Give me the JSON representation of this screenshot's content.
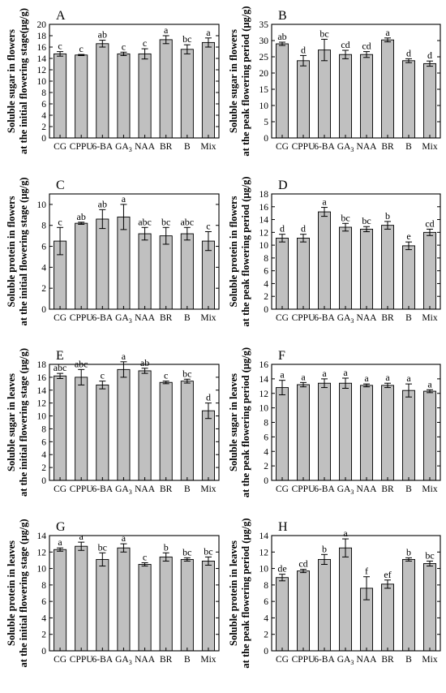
{
  "chart_data": [
    {
      "panel": "A",
      "type": "bar",
      "ylabel_lines": [
        "Soluble sugar in flowers",
        "at the initial flowering stage(μg/g)"
      ],
      "categories": [
        "CG",
        "CPPU",
        "6-BA",
        "GA3",
        "NAA",
        "BR",
        "B",
        "Mix"
      ],
      "values": [
        14.8,
        14.6,
        16.6,
        14.8,
        14.8,
        17.3,
        15.6,
        16.8
      ],
      "errors": [
        0.4,
        0.1,
        0.6,
        0.3,
        0.9,
        0.7,
        0.8,
        0.8
      ],
      "letters": [
        "c",
        "c",
        "ab",
        "c",
        "c",
        "a",
        "bc",
        "a"
      ],
      "ylim": [
        0,
        20
      ],
      "yticks": [
        0,
        2,
        4,
        6,
        8,
        10,
        12,
        14,
        16,
        18,
        20
      ]
    },
    {
      "panel": "B",
      "type": "bar",
      "ylabel_lines": [
        "Soluble sugar in flowers",
        "at the peak flowering period (μg/g)"
      ],
      "categories": [
        "CG",
        "CPPU",
        "6-BA",
        "GA3",
        "NAA",
        "BR",
        "B",
        "Mix"
      ],
      "values": [
        29.0,
        23.8,
        27.1,
        25.7,
        25.7,
        30.2,
        23.8,
        22.9
      ],
      "errors": [
        0.5,
        1.6,
        3.3,
        1.3,
        0.9,
        0.6,
        0.6,
        0.8
      ],
      "letters": [
        "ab",
        "d",
        "bc",
        "cd",
        "cd",
        "a",
        "d",
        "d"
      ],
      "ylim": [
        0,
        35
      ],
      "yticks": [
        0,
        5,
        10,
        15,
        20,
        25,
        30,
        35
      ]
    },
    {
      "panel": "C",
      "type": "bar",
      "ylabel_lines": [
        "Soluble protein in flowers",
        "at the initial flowering stage (μg/g)"
      ],
      "categories": [
        "CG",
        "CPPU",
        "6-BA",
        "GA3",
        "NAA",
        "BR",
        "B",
        "Mix"
      ],
      "values": [
        6.5,
        8.2,
        8.6,
        8.8,
        7.2,
        7.0,
        7.2,
        6.5
      ],
      "errors": [
        1.3,
        0.1,
        0.9,
        1.2,
        0.6,
        0.8,
        0.6,
        0.9
      ],
      "letters": [
        "c",
        "ab",
        "ab",
        "a",
        "abc",
        "bc",
        "abc",
        "c"
      ],
      "ylim": [
        0,
        11
      ],
      "yticks": [
        0,
        2,
        4,
        6,
        8,
        10
      ]
    },
    {
      "panel": "D",
      "type": "bar",
      "ylabel_lines": [
        "Soluble protein in flowers",
        "at the peak flowering period (μg/g)"
      ],
      "categories": [
        "CG",
        "CPPU",
        "6-BA",
        "GA3",
        "NAA",
        "BR",
        "B",
        "Mix"
      ],
      "values": [
        11.1,
        11.1,
        15.2,
        12.8,
        12.5,
        13.1,
        9.9,
        12.0
      ],
      "errors": [
        0.6,
        0.6,
        0.7,
        0.6,
        0.4,
        0.6,
        0.6,
        0.5
      ],
      "letters": [
        "d",
        "d",
        "a",
        "bc",
        "bc",
        "b",
        "e",
        "cd"
      ],
      "ylim": [
        0,
        18
      ],
      "yticks": [
        0,
        2,
        4,
        6,
        8,
        10,
        12,
        14,
        16,
        18
      ]
    },
    {
      "panel": "E",
      "type": "bar",
      "ylabel_lines": [
        "Soluble sugar in leaves",
        "at the initial flowering stage (μg/g)"
      ],
      "categories": [
        "CG",
        "CPPU",
        "6-BA",
        "GA3",
        "NAA",
        "BR",
        "B",
        "Mix"
      ],
      "values": [
        16.2,
        16.0,
        14.8,
        17.2,
        17.0,
        15.2,
        15.4,
        10.8
      ],
      "errors": [
        0.4,
        1.2,
        0.6,
        1.2,
        0.4,
        0.2,
        0.3,
        1.2
      ],
      "letters": [
        "abc",
        "abc",
        "c",
        "a",
        "ab",
        "c",
        "bc",
        "d"
      ],
      "ylim": [
        0,
        18
      ],
      "yticks": [
        0,
        2,
        4,
        6,
        8,
        10,
        12,
        14,
        16,
        18
      ]
    },
    {
      "panel": "F",
      "type": "bar",
      "ylabel_lines": [
        "Soluble sugar in leaves",
        "at the peak flowering period (μg/g)"
      ],
      "categories": [
        "CG",
        "CPPU",
        "6-BA",
        "GA3",
        "NAA",
        "BR",
        "B",
        "Mix"
      ],
      "values": [
        12.8,
        13.2,
        13.4,
        13.4,
        13.1,
        13.1,
        12.4,
        12.3
      ],
      "errors": [
        1.0,
        0.3,
        0.6,
        0.7,
        0.2,
        0.3,
        0.9,
        0.2
      ],
      "letters": [
        "a",
        "a",
        "a",
        "a",
        "a",
        "a",
        "a",
        "a"
      ],
      "ylim": [
        0,
        16
      ],
      "yticks": [
        0,
        2,
        4,
        6,
        8,
        10,
        12,
        14,
        16
      ]
    },
    {
      "panel": "G",
      "type": "bar",
      "ylabel_lines": [
        "Soluble protein in leaves",
        "at the initial flowering stage (μg/g)"
      ],
      "categories": [
        "CG",
        "CPPU",
        "6-BA",
        "GA3",
        "NAA",
        "BR",
        "B",
        "Mix"
      ],
      "values": [
        12.3,
        12.7,
        11.1,
        12.5,
        10.5,
        11.4,
        11.1,
        10.9
      ],
      "errors": [
        0.2,
        0.5,
        0.8,
        0.5,
        0.2,
        0.5,
        0.2,
        0.5
      ],
      "letters": [
        "a",
        "a",
        "bc",
        "a",
        "c",
        "b",
        "bc",
        "bc"
      ],
      "ylim": [
        0,
        14
      ],
      "yticks": [
        0,
        2,
        4,
        6,
        8,
        10,
        12,
        14
      ]
    },
    {
      "panel": "H",
      "type": "bar",
      "ylabel_lines": [
        "Soluble protein in leaves",
        "at the peak flowering period (μg/g)"
      ],
      "categories": [
        "CG",
        "CPPU",
        "6-BA",
        "GA3",
        "NAA",
        "BR",
        "B",
        "Mix"
      ],
      "values": [
        8.9,
        9.7,
        11.1,
        12.5,
        7.6,
        8.1,
        11.1,
        10.6
      ],
      "errors": [
        0.4,
        0.2,
        0.6,
        1.1,
        1.4,
        0.5,
        0.2,
        0.3
      ],
      "letters": [
        "de",
        "cd",
        "b",
        "a",
        "f",
        "ef",
        "b",
        "bc"
      ],
      "ylim": [
        0,
        14
      ],
      "yticks": [
        0,
        2,
        4,
        6,
        8,
        10,
        12,
        14
      ]
    }
  ],
  "style": {
    "bar_fill": "#c0c0c0",
    "bar_stroke": "#000000"
  }
}
